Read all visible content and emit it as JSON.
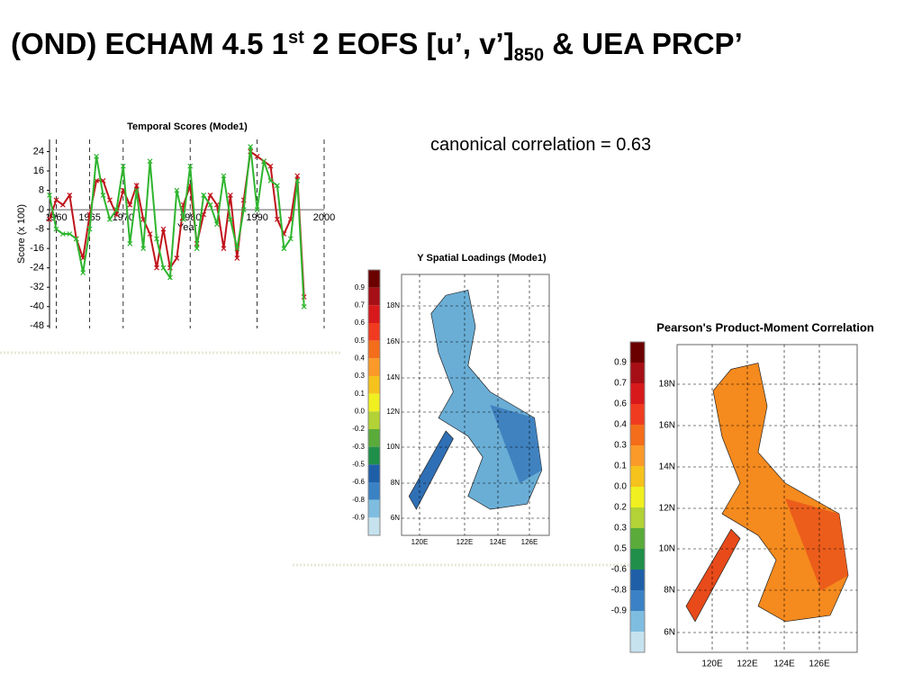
{
  "header": {
    "title_parts": [
      "(OND) ECHAM 4.5 1",
      "st",
      " 2 EOFS [u’, v’]",
      "850",
      " & UEA PRCP’"
    ]
  },
  "note": "canonical correlation = 0.63",
  "chart_data": {
    "type": "line",
    "title": "Temporal Scores (Mode1)",
    "x_label": "Year",
    "y_label": "Score (x 100)",
    "x": [
      1959,
      1960,
      1961,
      1962,
      1963,
      1964,
      1965,
      1966,
      1967,
      1968,
      1969,
      1970,
      1971,
      1972,
      1973,
      1974,
      1975,
      1976,
      1977,
      1978,
      1979,
      1980,
      1981,
      1982,
      1983,
      1984,
      1985,
      1986,
      1987,
      1988,
      1989,
      1990,
      1991,
      1992,
      1993,
      1994,
      1995,
      1996,
      1997
    ],
    "series": [
      {
        "name": "red",
        "color": "#c0141c",
        "values": [
          -4,
          4,
          2,
          6,
          -12,
          -20,
          -2,
          12,
          12,
          4,
          -2,
          8,
          2,
          10,
          -4,
          -10,
          -24,
          -8,
          -24,
          -20,
          2,
          10,
          -14,
          -2,
          6,
          2,
          -16,
          6,
          -20,
          4,
          24,
          22,
          20,
          18,
          -4,
          -10,
          -4,
          14,
          -36
        ]
      },
      {
        "name": "green",
        "color": "#2fb52f",
        "values": [
          6,
          -8,
          -10,
          -10,
          -12,
          -26,
          -8,
          22,
          6,
          -4,
          0,
          18,
          -14,
          8,
          -16,
          20,
          -12,
          -24,
          -28,
          8,
          -4,
          18,
          -16,
          6,
          2,
          -6,
          14,
          -4,
          -16,
          0,
          26,
          0,
          20,
          12,
          10,
          -16,
          -12,
          12,
          -40
        ]
      }
    ],
    "xlim": [
      1959,
      2000
    ],
    "xticks": [
      1960,
      1965,
      1970,
      1980,
      1990,
      2000
    ],
    "ylim": [
      -49,
      29
    ],
    "yticks": [
      24,
      16,
      8,
      0,
      -8,
      -16,
      -24,
      -32,
      -40,
      -48
    ],
    "grid": true
  },
  "maps": [
    {
      "title": "Y Spatial Loadings (Mode1)",
      "colorbar_labels": [
        "0.9",
        "0.7",
        "0.6",
        "0.5",
        "0.4",
        "0.3",
        "0.1",
        "0.0",
        "-0.2",
        "-0.3",
        "-0.5",
        "-0.6",
        "-0.8",
        "-0.9"
      ],
      "lat_labels": [
        "18N",
        "16N",
        "14N",
        "12N",
        "10N",
        "8N",
        "6N"
      ],
      "lon_labels": [
        "120E",
        "122E",
        "124E",
        "126E"
      ]
    },
    {
      "title": "Pearson's Product-Moment Correlation",
      "colorbar_labels": [
        "0.9",
        "0.7",
        "0.6",
        "0.4",
        "0.3",
        "0.1",
        "0.0",
        "0.2",
        "0.3",
        "0.5",
        "-0.6",
        "-0.8",
        "-0.9"
      ],
      "lat_labels": [
        "18N",
        "16N",
        "14N",
        "12N",
        "10N",
        "8N",
        "6N"
      ],
      "lon_labels": [
        "120E",
        "122E",
        "124E",
        "126E"
      ]
    }
  ]
}
